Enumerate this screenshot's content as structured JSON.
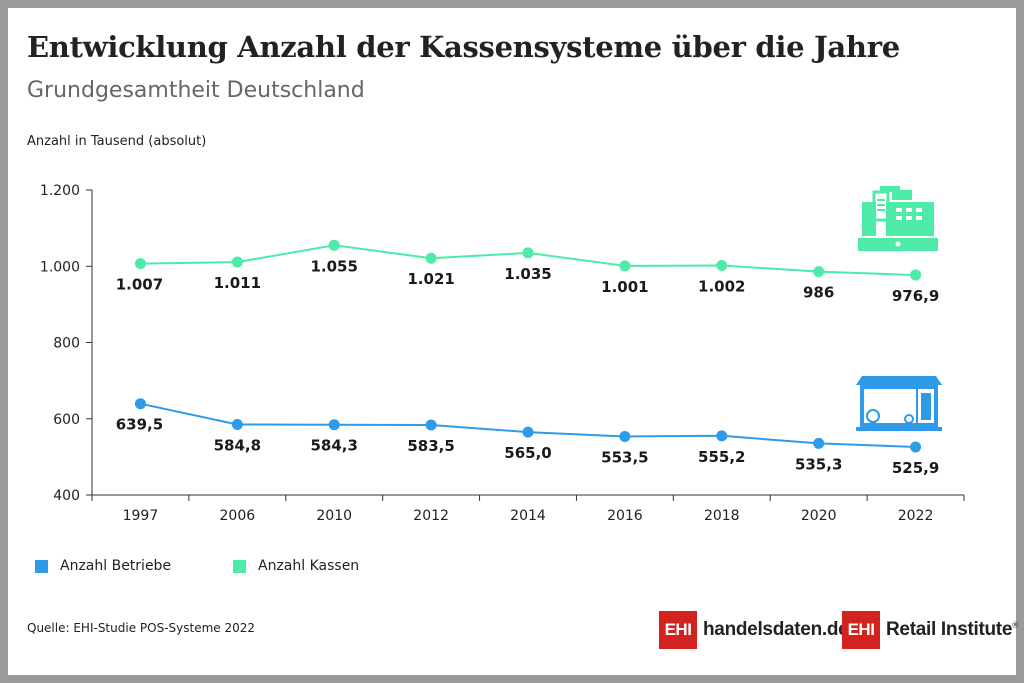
{
  "title": "Entwicklung Anzahl der Kassensysteme über die Jahre",
  "subtitle": "Grundgesamtheit Deutschland",
  "source": "Quelle: EHI-Studie POS-Systeme 2022",
  "logos": {
    "handelsdaten_box": "EHI",
    "handelsdaten_text": "handelsdaten.de",
    "retail_box": "EHI",
    "retail_text": "Retail Institute",
    "registered_mark": "®"
  },
  "colors": {
    "betriebe": "#2f9be8",
    "kassen": "#4eeaa8",
    "axis": "#333333",
    "logo_red": "#d2231f"
  },
  "icons": {
    "kassen": "cash-register-icon",
    "betriebe": "shop-icon"
  },
  "chart_data": {
    "type": "line",
    "ylabel": "Anzahl in Tausend (absolut)",
    "xlabel": "",
    "ylim": [
      400,
      1200
    ],
    "yticks": [
      400,
      600,
      800,
      1000,
      1200
    ],
    "ytick_labels": [
      "400",
      "600",
      "800",
      "1.000",
      "1.200"
    ],
    "categories": [
      "1997",
      "2006",
      "2010",
      "2012",
      "2014",
      "2016",
      "2018",
      "2020",
      "2022"
    ],
    "grid": false,
    "legend_position": "bottom-left",
    "series": [
      {
        "name": "Anzahl Betriebe",
        "color": "#2f9be8",
        "values": [
          639.5,
          584.8,
          584.3,
          583.5,
          565.0,
          553.5,
          555.2,
          535.3,
          525.9
        ],
        "labels": [
          "639,5",
          "584,8",
          "584,3",
          "583,5",
          "565,0",
          "553,5",
          "555,2",
          "535,3",
          "525,9"
        ]
      },
      {
        "name": "Anzahl Kassen",
        "color": "#4eeaa8",
        "values": [
          1007,
          1011,
          1055,
          1021,
          1035,
          1001,
          1002,
          986,
          976.9
        ],
        "labels": [
          "1.007",
          "1.011",
          "1.055",
          "1.021",
          "1.035",
          "1.001",
          "1.002",
          "986",
          "976,9"
        ]
      }
    ]
  }
}
